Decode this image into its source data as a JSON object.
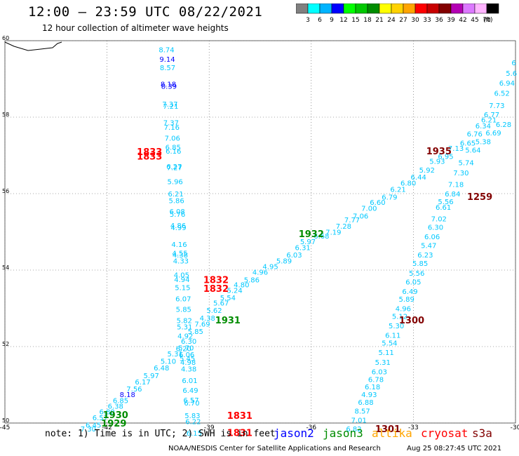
{
  "header": {
    "title": "12:00 – 23:59 UTC 08/22/2021",
    "subtitle": "12 hour collection of altimeter wave heights"
  },
  "legend": {
    "units": "(ft)",
    "bins": [
      {
        "label": "3",
        "color": "#808080"
      },
      {
        "label": "6",
        "color": "#00ffff"
      },
      {
        "label": "9",
        "color": "#00b4ff"
      },
      {
        "label": "12",
        "color": "#0000ff"
      },
      {
        "label": "15",
        "color": "#00ff00"
      },
      {
        "label": "18",
        "color": "#00c800"
      },
      {
        "label": "21",
        "color": "#008c00"
      },
      {
        "label": "24",
        "color": "#ffff00"
      },
      {
        "label": "27",
        "color": "#ffd200"
      },
      {
        "label": "30",
        "color": "#ffa500"
      },
      {
        "label": "33",
        "color": "#ff0000"
      },
      {
        "label": "36",
        "color": "#c80000"
      },
      {
        "label": "39",
        "color": "#820000"
      },
      {
        "label": "42",
        "color": "#b400b4"
      },
      {
        "label": "45",
        "color": "#dc78ff"
      },
      {
        "label": "70",
        "color": "#ffb4ff"
      },
      {
        "label": "",
        "color": "#000000"
      }
    ]
  },
  "axes": {
    "lon_ticks": [
      "-45",
      "-42",
      "-39",
      "-36",
      "-33",
      "-30"
    ],
    "lat_ticks": [
      "60",
      "58",
      "56",
      "54",
      "52",
      "50"
    ]
  },
  "colors": {
    "swh": "#00c8ff",
    "swh_dark": "#0000ff",
    "jason2": "#0000ff",
    "jason3": "#008c00",
    "altika": "#ffa500",
    "cryosat": "#ff0000",
    "s3a": "#820000"
  },
  "tracks": [
    {
      "sat": "jason2",
      "pass_labels": [],
      "points": [
        {
          "lon": -40.25,
          "lat": 59.77,
          "swh": "8.74"
        },
        {
          "lon": -40.23,
          "lat": 59.52,
          "swh": "9.14"
        },
        {
          "lon": -40.22,
          "lat": 59.3,
          "swh": "8.57"
        },
        {
          "lon": -40.2,
          "lat": 58.87,
          "swh": "8.18"
        },
        {
          "lon": -40.18,
          "lat": 58.82,
          "swh": "8.39"
        },
        {
          "lon": -40.15,
          "lat": 58.35,
          "swh": "7.37"
        },
        {
          "lon": -40.13,
          "lat": 58.29,
          "swh": "7.21"
        },
        {
          "lon": -40.12,
          "lat": 57.86,
          "swh": "7.37"
        },
        {
          "lon": -40.1,
          "lat": 57.74,
          "swh": "7.16"
        },
        {
          "lon": -40.08,
          "lat": 57.46,
          "swh": "7.06"
        },
        {
          "lon": -40.06,
          "lat": 57.22,
          "swh": "6.85"
        },
        {
          "lon": -40.05,
          "lat": 57.12,
          "swh": "6.16"
        },
        {
          "lon": -40.03,
          "lat": 56.72,
          "swh": "6.27"
        },
        {
          "lon": -40.02,
          "lat": 56.69,
          "swh": "7.27"
        },
        {
          "lon": -40.0,
          "lat": 56.32,
          "swh": "5.96"
        },
        {
          "lon": -39.98,
          "lat": 56.0,
          "swh": "6.21"
        },
        {
          "lon": -39.96,
          "lat": 55.83,
          "swh": "5.86"
        },
        {
          "lon": -39.94,
          "lat": 55.54,
          "swh": "6.08"
        },
        {
          "lon": -39.93,
          "lat": 55.47,
          "swh": "5.76"
        },
        {
          "lon": -39.91,
          "lat": 55.17,
          "swh": "4.86"
        },
        {
          "lon": -39.9,
          "lat": 55.12,
          "swh": "4.99"
        },
        {
          "lon": -39.88,
          "lat": 54.68,
          "swh": "4.16"
        },
        {
          "lon": -39.86,
          "lat": 54.45,
          "swh": "4.55"
        },
        {
          "lon": -39.85,
          "lat": 54.4,
          "swh": "4.38"
        },
        {
          "lon": -39.83,
          "lat": 54.25,
          "swh": "4.33"
        },
        {
          "lon": -39.81,
          "lat": 53.88,
          "swh": "4.05"
        },
        {
          "lon": -39.8,
          "lat": 53.76,
          "swh": "4.94"
        },
        {
          "lon": -39.78,
          "lat": 53.55,
          "swh": "5.15"
        },
        {
          "lon": -39.76,
          "lat": 53.26,
          "swh": "6.07"
        },
        {
          "lon": -39.75,
          "lat": 52.98,
          "swh": "5.85"
        },
        {
          "lon": -39.73,
          "lat": 52.69,
          "swh": "5.82"
        },
        {
          "lon": -39.72,
          "lat": 52.52,
          "swh": "5.31"
        },
        {
          "lon": -39.7,
          "lat": 52.28,
          "swh": "4.92"
        },
        {
          "lon": -39.68,
          "lat": 51.97,
          "swh": "5.70"
        },
        {
          "lon": -39.66,
          "lat": 51.8,
          "swh": "6.06"
        },
        {
          "lon": -39.64,
          "lat": 51.7,
          "swh": "5.45"
        },
        {
          "lon": -39.62,
          "lat": 51.6,
          "swh": "4.98"
        },
        {
          "lon": -39.6,
          "lat": 51.42,
          "swh": "4.38"
        },
        {
          "lon": -39.57,
          "lat": 51.12,
          "swh": "6.01"
        },
        {
          "lon": -39.55,
          "lat": 50.86,
          "swh": "6.49"
        },
        {
          "lon": -39.53,
          "lat": 50.61,
          "swh": "6.57"
        },
        {
          "lon": -39.51,
          "lat": 50.53,
          "swh": "6.70"
        },
        {
          "lon": -39.49,
          "lat": 50.2,
          "swh": "5.83"
        },
        {
          "lon": -39.47,
          "lat": 50.05,
          "swh": "6.22"
        },
        {
          "lon": -39.44,
          "lat": 49.74,
          "swh": "6.15"
        }
      ]
    },
    {
      "sat": "jason3",
      "pass_labels": [
        {
          "lon": -36.0,
          "lat": 54.95,
          "text": "1932"
        },
        {
          "lon": -38.45,
          "lat": 52.7,
          "text": "1931"
        },
        {
          "lon": -41.75,
          "lat": 50.22,
          "text": "1930"
        },
        {
          "lon": -41.8,
          "lat": 50.0,
          "text": "1929"
        }
      ],
      "points": [
        {
          "lon": -30.05,
          "lat": 59.43,
          "swh": "6"
        },
        {
          "lon": -30.12,
          "lat": 59.16,
          "swh": "5.6"
        },
        {
          "lon": -30.25,
          "lat": 58.9,
          "swh": "6.94"
        },
        {
          "lon": -30.4,
          "lat": 58.63,
          "swh": "6.52"
        },
        {
          "lon": -30.55,
          "lat": 58.31,
          "swh": "7.73"
        },
        {
          "lon": -30.7,
          "lat": 58.07,
          "swh": "6.77"
        },
        {
          "lon": -30.78,
          "lat": 57.94,
          "swh": "6.21"
        },
        {
          "lon": -30.95,
          "lat": 57.78,
          "swh": "6.34"
        },
        {
          "lon": -31.2,
          "lat": 57.57,
          "swh": "6.76"
        },
        {
          "lon": -31.4,
          "lat": 57.33,
          "swh": "6.65"
        },
        {
          "lon": -31.75,
          "lat": 57.19,
          "swh": "7.13"
        },
        {
          "lon": -32.05,
          "lat": 56.98,
          "swh": "6.95"
        },
        {
          "lon": -32.3,
          "lat": 56.85,
          "swh": "5.93"
        },
        {
          "lon": -32.6,
          "lat": 56.62,
          "swh": "5.92"
        },
        {
          "lon": -32.85,
          "lat": 56.44,
          "swh": "6.44"
        },
        {
          "lon": -33.15,
          "lat": 56.28,
          "swh": "6.80"
        },
        {
          "lon": -33.45,
          "lat": 56.12,
          "swh": "6.21"
        },
        {
          "lon": -33.7,
          "lat": 55.92,
          "swh": "6.79"
        },
        {
          "lon": -34.05,
          "lat": 55.78,
          "swh": "6.60"
        },
        {
          "lon": -34.3,
          "lat": 55.62,
          "swh": "7.00"
        },
        {
          "lon": -34.55,
          "lat": 55.42,
          "swh": "7.06"
        },
        {
          "lon": -34.8,
          "lat": 55.32,
          "swh": "7.77"
        },
        {
          "lon": -35.05,
          "lat": 55.16,
          "swh": "7.28"
        },
        {
          "lon": -35.35,
          "lat": 55.0,
          "swh": "7.19"
        },
        {
          "lon": -35.7,
          "lat": 54.9,
          "swh": "6.68"
        },
        {
          "lon": -36.1,
          "lat": 54.75,
          "swh": "5.97"
        },
        {
          "lon": -36.25,
          "lat": 54.6,
          "swh": "6.31"
        },
        {
          "lon": -36.5,
          "lat": 54.4,
          "swh": "6.03"
        },
        {
          "lon": -36.8,
          "lat": 54.25,
          "swh": "5.89"
        },
        {
          "lon": -37.2,
          "lat": 54.1,
          "swh": "4.95"
        },
        {
          "lon": -37.5,
          "lat": 53.95,
          "swh": "4.96"
        },
        {
          "lon": -37.75,
          "lat": 53.75,
          "swh": "5.86"
        },
        {
          "lon": -38.05,
          "lat": 53.62,
          "swh": "4.80"
        },
        {
          "lon": -38.25,
          "lat": 53.48,
          "swh": "5.24"
        },
        {
          "lon": -38.45,
          "lat": 53.28,
          "swh": "5.54"
        },
        {
          "lon": -38.65,
          "lat": 53.15,
          "swh": "5.67"
        },
        {
          "lon": -38.85,
          "lat": 52.95,
          "swh": "5.62"
        },
        {
          "lon": -39.05,
          "lat": 52.75,
          "swh": "4.38"
        },
        {
          "lon": -39.2,
          "lat": 52.6,
          "swh": "7.69"
        },
        {
          "lon": -39.4,
          "lat": 52.4,
          "swh": "5.85"
        },
        {
          "lon": -39.6,
          "lat": 52.15,
          "swh": "6.30"
        },
        {
          "lon": -39.75,
          "lat": 51.95,
          "swh": "6.20"
        },
        {
          "lon": -40.0,
          "lat": 51.82,
          "swh": "5.31"
        },
        {
          "lon": -40.2,
          "lat": 51.62,
          "swh": "5.10"
        },
        {
          "lon": -40.4,
          "lat": 51.45,
          "swh": "6.48"
        },
        {
          "lon": -40.7,
          "lat": 51.25,
          "swh": "5.97"
        },
        {
          "lon": -40.95,
          "lat": 51.08,
          "swh": "6.17"
        },
        {
          "lon": -41.2,
          "lat": 50.9,
          "swh": "7.56"
        },
        {
          "lon": -41.4,
          "lat": 50.75,
          "swh": "8.18"
        },
        {
          "lon": -41.6,
          "lat": 50.6,
          "swh": "6.85"
        },
        {
          "lon": -41.75,
          "lat": 50.45,
          "swh": "6.38"
        },
        {
          "lon": -42.0,
          "lat": 50.3,
          "swh": "6.80"
        },
        {
          "lon": -42.2,
          "lat": 50.15,
          "swh": "6.57"
        },
        {
          "lon": -42.4,
          "lat": 49.95,
          "swh": "6.45"
        },
        {
          "lon": -42.55,
          "lat": 49.85,
          "swh": "7.30"
        }
      ]
    },
    {
      "sat": "cryosat",
      "pass_labels": [
        {
          "lon": -40.75,
          "lat": 57.1,
          "text": "1833"
        },
        {
          "lon": -40.75,
          "lat": 56.98,
          "text": "1833"
        },
        {
          "lon": -38.8,
          "lat": 53.75,
          "text": "1832"
        },
        {
          "lon": -38.8,
          "lat": 53.52,
          "text": "1832"
        },
        {
          "lon": -38.1,
          "lat": 50.2,
          "text": "1831"
        },
        {
          "lon": -38.1,
          "lat": 49.75,
          "text": "1831"
        }
      ],
      "points": []
    },
    {
      "sat": "s3a",
      "pass_labels": [
        {
          "lon": -32.25,
          "lat": 57.12,
          "text": "1935"
        },
        {
          "lon": -31.05,
          "lat": 55.93,
          "text": "1259"
        },
        {
          "lon": -33.05,
          "lat": 52.7,
          "text": "1300"
        },
        {
          "lon": -33.75,
          "lat": 49.85,
          "text": "1301"
        }
      ],
      "points": [
        {
          "lon": -30.35,
          "lat": 57.82,
          "swh": "6.28"
        },
        {
          "lon": -30.65,
          "lat": 57.6,
          "swh": "6.69"
        },
        {
          "lon": -30.95,
          "lat": 57.37,
          "swh": "5.38"
        },
        {
          "lon": -31.25,
          "lat": 57.15,
          "swh": "5.64"
        },
        {
          "lon": -31.45,
          "lat": 56.82,
          "swh": "5.74"
        },
        {
          "lon": -31.6,
          "lat": 56.55,
          "swh": "7.30"
        },
        {
          "lon": -31.75,
          "lat": 56.25,
          "swh": "7.18"
        },
        {
          "lon": -31.85,
          "lat": 56.0,
          "swh": "6.84"
        },
        {
          "lon": -32.05,
          "lat": 55.8,
          "swh": "5.56"
        },
        {
          "lon": -32.12,
          "lat": 55.65,
          "swh": "6.61"
        },
        {
          "lon": -32.25,
          "lat": 55.35,
          "swh": "7.02"
        },
        {
          "lon": -32.35,
          "lat": 55.13,
          "swh": "6.30"
        },
        {
          "lon": -32.45,
          "lat": 54.88,
          "swh": "6.06"
        },
        {
          "lon": -32.55,
          "lat": 54.65,
          "swh": "5.47"
        },
        {
          "lon": -32.65,
          "lat": 54.4,
          "swh": "6.23"
        },
        {
          "lon": -32.8,
          "lat": 54.18,
          "swh": "5.85"
        },
        {
          "lon": -32.9,
          "lat": 53.93,
          "swh": "5.56"
        },
        {
          "lon": -33.0,
          "lat": 53.7,
          "swh": "6.05"
        },
        {
          "lon": -33.1,
          "lat": 53.45,
          "swh": "6.49"
        },
        {
          "lon": -33.2,
          "lat": 53.25,
          "swh": "5.89"
        },
        {
          "lon": -33.3,
          "lat": 53.0,
          "swh": "4.96"
        },
        {
          "lon": -33.4,
          "lat": 52.8,
          "swh": "5.12"
        },
        {
          "lon": -33.5,
          "lat": 52.55,
          "swh": "5.30"
        },
        {
          "lon": -33.6,
          "lat": 52.3,
          "swh": "6.11"
        },
        {
          "lon": -33.7,
          "lat": 52.1,
          "swh": "5.54"
        },
        {
          "lon": -33.8,
          "lat": 51.85,
          "swh": "5.11"
        },
        {
          "lon": -33.9,
          "lat": 51.6,
          "swh": "5.31"
        },
        {
          "lon": -34.0,
          "lat": 51.35,
          "swh": "6.03"
        },
        {
          "lon": -34.1,
          "lat": 51.15,
          "swh": "6.78"
        },
        {
          "lon": -34.2,
          "lat": 50.95,
          "swh": "6.18"
        },
        {
          "lon": -34.3,
          "lat": 50.75,
          "swh": "4.93"
        },
        {
          "lon": -34.4,
          "lat": 50.55,
          "swh": "6.88"
        },
        {
          "lon": -34.5,
          "lat": 50.32,
          "swh": "8.57"
        },
        {
          "lon": -34.6,
          "lat": 50.08,
          "swh": "7.01"
        },
        {
          "lon": -34.75,
          "lat": 49.85,
          "swh": "6.82"
        }
      ]
    }
  ],
  "footer": {
    "note": "note:  1) Time is in UTC;  2) SWH is in feet",
    "satellites": [
      "jason2",
      "jason3",
      "altika",
      "cryosat",
      "s3a"
    ],
    "credit": "NOAA/NESDIS Center for Satellite Applications and Research",
    "timestamp": "Aug 25 08:27:45 UTC 2021"
  }
}
